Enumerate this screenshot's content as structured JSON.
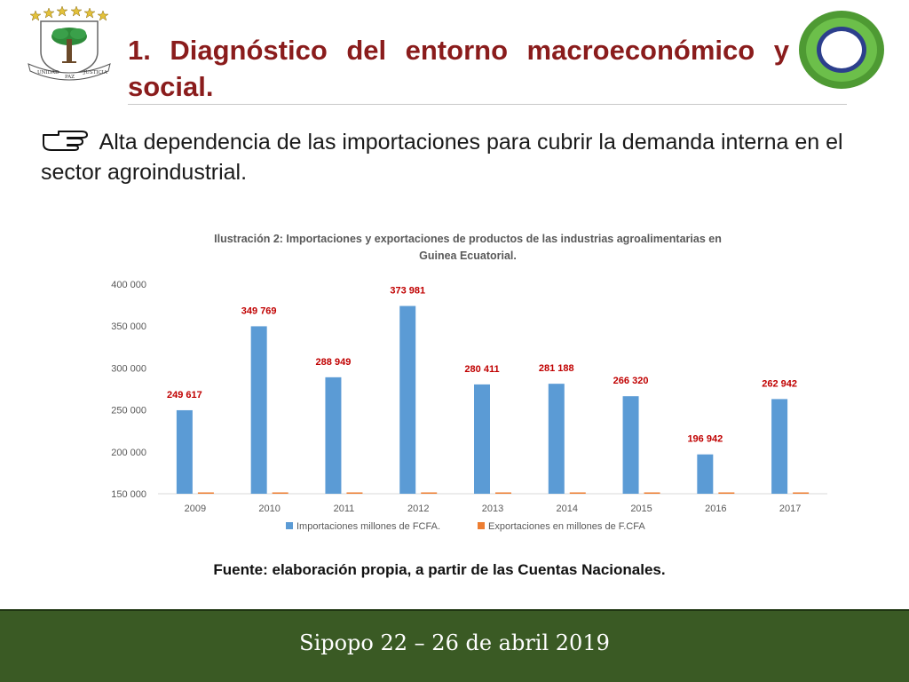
{
  "header": {
    "title": "1. Diagnóstico del entorno macroeconómico y social.",
    "emblem": {
      "icon": "coat-of-arms-icon",
      "motto_left": "UNIDAD",
      "motto_center": "PAZ",
      "motto_right": "JUSTICIA"
    },
    "logo": {
      "icon": "ring-logo-icon",
      "outer_color": "#5aa63a",
      "inner_color": "#2c3f8c"
    }
  },
  "content": {
    "bullet_text": "Alta dependencia de las importaciones para cubrir la demanda interna en el sector agroindustrial.",
    "bullet_icon": "pointing-hand-icon"
  },
  "chart_data": {
    "type": "bar",
    "title": "Ilustración 2: Importaciones y exportaciones de productos de las industrias agroalimentarias en Guinea Ecuatorial.",
    "title_lines": [
      "Ilustración 2: Importaciones y exportaciones de productos de las industrias agroalimentarias en",
      "Guinea Ecuatorial."
    ],
    "categories": [
      "2009",
      "2010",
      "2011",
      "2012",
      "2013",
      "2014",
      "2015",
      "2016",
      "2017"
    ],
    "series": [
      {
        "name": "Importaciones millones de FCFA.",
        "color": "#5b9bd5",
        "values": [
          249617,
          349769,
          288949,
          373981,
          280411,
          281188,
          266320,
          196942,
          262942
        ],
        "labels": [
          "249 617",
          "349 769",
          "288 949",
          "373 981",
          "280 411",
          "281 188",
          "266 320",
          "196 942",
          "262 942"
        ]
      },
      {
        "name": "Exportaciones en millones de F.CFA",
        "color": "#ed7d31",
        "values": [
          150000,
          150000,
          150000,
          150000,
          150000,
          150000,
          150000,
          150000,
          150000
        ]
      }
    ],
    "ylim": [
      150000,
      400000
    ],
    "yticks": [
      150000,
      200000,
      250000,
      300000,
      350000,
      400000
    ],
    "ytick_labels": [
      "150 000",
      "200 000",
      "250 000",
      "300 000",
      "350 000",
      "400 000"
    ],
    "label_color": "#c00000",
    "grid": false,
    "legend_position": "bottom"
  },
  "source_note": "Fuente: elaboración propia, a partir de las Cuentas Nacionales.",
  "footer": {
    "text": "Sipopo 22 – 26 de abril 2019"
  }
}
